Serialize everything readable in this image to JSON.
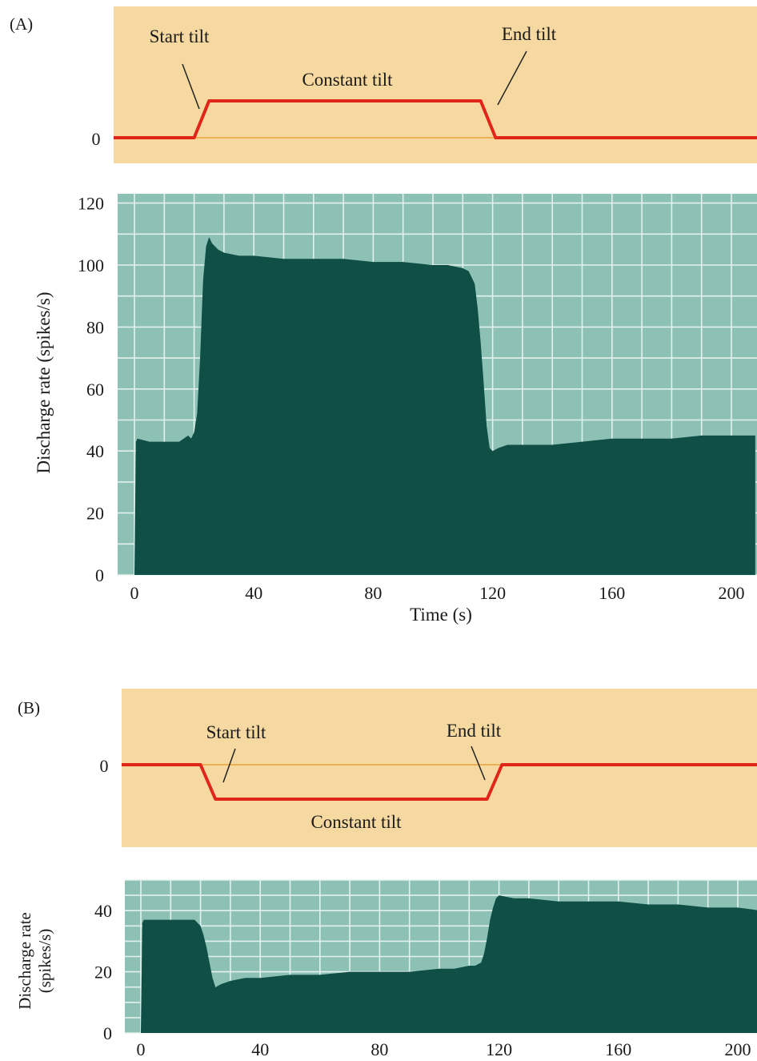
{
  "panels": [
    {
      "letter": "(A)",
      "tilt": {
        "zero_label": "0",
        "start_label": "Start tilt",
        "end_label": "End tilt",
        "constant_label": "Constant tilt",
        "direction": "up",
        "timing_s": {
          "start": 20,
          "plateau_start": 25,
          "plateau_end": 116,
          "end": 121
        }
      }
    },
    {
      "letter": "(B)",
      "tilt": {
        "zero_label": "0",
        "start_label": "Start tilt",
        "end_label": "End tilt",
        "constant_label": "Constant tilt",
        "direction": "down",
        "timing_s": {
          "start": 20,
          "plateau_start": 25,
          "plateau_end": 116,
          "end": 121
        }
      }
    }
  ],
  "chart_data": [
    {
      "type": "area",
      "panel": "A",
      "title": "",
      "xlabel": "Time (s)",
      "ylabel": "Discharge rate (spikes/s)",
      "xlim": [
        0,
        208
      ],
      "ylim": [
        0,
        123
      ],
      "xticks": [
        0,
        40,
        80,
        120,
        160,
        200
      ],
      "yticks": [
        0,
        20,
        40,
        60,
        80,
        100,
        120
      ],
      "grid": true,
      "x": [
        0,
        0.5,
        1,
        5,
        10,
        15,
        18,
        19,
        20,
        21,
        22,
        23,
        24,
        25,
        26,
        28,
        30,
        35,
        40,
        50,
        60,
        70,
        80,
        90,
        100,
        105,
        110,
        112,
        114,
        115,
        116,
        117,
        118,
        119,
        120,
        122,
        125,
        130,
        140,
        150,
        160,
        170,
        180,
        190,
        200,
        208
      ],
      "y": [
        0,
        43,
        44,
        43,
        43,
        43,
        45,
        44,
        46,
        52,
        70,
        95,
        106,
        109,
        107,
        105,
        104,
        103,
        103,
        102,
        102,
        102,
        101,
        101,
        100,
        100,
        99,
        98,
        94,
        86,
        75,
        62,
        48,
        41,
        40,
        41,
        42,
        42,
        42,
        43,
        44,
        44,
        44,
        45,
        45,
        45
      ],
      "colors": {
        "fill": "#0f4f46",
        "background": "#8dc1b5",
        "grid": "#e3f1ec"
      }
    },
    {
      "type": "area",
      "panel": "B",
      "title": "",
      "xlabel": "",
      "ylabel": "Discharge rate (spikes/s)",
      "xlim": [
        0,
        208
      ],
      "ylim": [
        0,
        50
      ],
      "xticks": [
        0,
        40,
        80,
        120,
        160,
        200
      ],
      "yticks": [
        0,
        20,
        40
      ],
      "grid": true,
      "x": [
        0,
        0.5,
        1,
        5,
        10,
        15,
        18,
        19,
        20,
        21,
        22,
        23,
        24,
        25,
        27,
        30,
        35,
        40,
        50,
        60,
        70,
        80,
        90,
        100,
        105,
        110,
        112,
        114,
        115,
        116,
        117,
        118,
        119,
        120,
        125,
        130,
        140,
        150,
        160,
        170,
        180,
        190,
        200,
        208
      ],
      "y": [
        0,
        36,
        37,
        37,
        37,
        37,
        37,
        36,
        35,
        32,
        28,
        23,
        18,
        15,
        16,
        17,
        18,
        18,
        19,
        19,
        20,
        20,
        20,
        21,
        21,
        22,
        22,
        23,
        26,
        31,
        37,
        41,
        44,
        45,
        44,
        44,
        43,
        43,
        43,
        42,
        42,
        41,
        41,
        40
      ],
      "colors": {
        "fill": "#0f4f46",
        "background": "#8dc1b5",
        "grid": "#e3f1ec"
      }
    }
  ],
  "colors": {
    "tilt_panel": "#f6d9a0",
    "tilt_line": "#e0251b",
    "zero_line": "#e8a23c"
  }
}
